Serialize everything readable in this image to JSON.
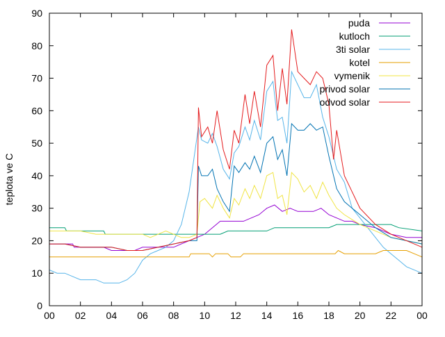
{
  "chart_data": {
    "type": "line",
    "ylabel": "teplota ve C",
    "xlabel": "",
    "title": "",
    "xlim": [
      0,
      24
    ],
    "ylim": [
      0,
      90
    ],
    "xticks": [
      "00",
      "02",
      "04",
      "06",
      "08",
      "10",
      "12",
      "14",
      "16",
      "18",
      "20",
      "22",
      "00"
    ],
    "yticks": [
      "0",
      "10",
      "20",
      "30",
      "40",
      "50",
      "60",
      "70",
      "80",
      "90"
    ],
    "grid": false,
    "legend_position": "top-right",
    "series": [
      {
        "name": "puda",
        "color": "#9400d3",
        "points": [
          [
            0,
            19
          ],
          [
            1.5,
            19
          ],
          [
            1.6,
            18
          ],
          [
            3.5,
            18
          ],
          [
            4,
            17
          ],
          [
            5.5,
            17
          ],
          [
            6,
            18
          ],
          [
            8,
            18
          ],
          [
            8.5,
            19
          ],
          [
            9,
            20
          ],
          [
            9.5,
            21
          ],
          [
            10,
            22
          ],
          [
            10.5,
            24
          ],
          [
            11,
            26
          ],
          [
            11.5,
            26
          ],
          [
            12,
            26
          ],
          [
            12.5,
            26
          ],
          [
            13,
            27
          ],
          [
            13.5,
            28
          ],
          [
            14,
            30
          ],
          [
            14.5,
            31
          ],
          [
            15,
            29
          ],
          [
            15.5,
            30
          ],
          [
            16,
            29
          ],
          [
            16.5,
            29
          ],
          [
            17,
            29
          ],
          [
            17.5,
            30
          ],
          [
            18,
            28
          ],
          [
            18.5,
            27
          ],
          [
            19,
            26
          ],
          [
            19.5,
            26
          ],
          [
            20,
            25
          ],
          [
            21,
            24
          ],
          [
            22,
            22
          ],
          [
            23,
            21
          ],
          [
            24,
            21
          ]
        ]
      },
      {
        "name": "kutloch",
        "color": "#009e73",
        "points": [
          [
            0,
            24
          ],
          [
            1,
            24
          ],
          [
            1.1,
            23
          ],
          [
            3.5,
            23
          ],
          [
            3.6,
            22
          ],
          [
            6,
            22
          ],
          [
            8,
            22
          ],
          [
            9,
            22
          ],
          [
            11,
            22
          ],
          [
            11.5,
            23
          ],
          [
            14,
            23
          ],
          [
            14.5,
            24
          ],
          [
            18,
            24
          ],
          [
            18.5,
            25
          ],
          [
            22,
            25
          ],
          [
            22.5,
            24
          ],
          [
            24,
            23
          ]
        ]
      },
      {
        "name": "3ti solar",
        "color": "#56b4e9",
        "points": [
          [
            0,
            11
          ],
          [
            0.5,
            10
          ],
          [
            1,
            10
          ],
          [
            1.5,
            9
          ],
          [
            2,
            8
          ],
          [
            3,
            8
          ],
          [
            3.5,
            7
          ],
          [
            4.5,
            7
          ],
          [
            5,
            8
          ],
          [
            5.5,
            10
          ],
          [
            6,
            14
          ],
          [
            6.5,
            16
          ],
          [
            7,
            17
          ],
          [
            7.5,
            18
          ],
          [
            8,
            20
          ],
          [
            8.5,
            25
          ],
          [
            9,
            35
          ],
          [
            9.3,
            45
          ],
          [
            9.6,
            55
          ],
          [
            9.8,
            51
          ],
          [
            10.2,
            50
          ],
          [
            10.5,
            53
          ],
          [
            10.8,
            49
          ],
          [
            11.2,
            42
          ],
          [
            11.6,
            39
          ],
          [
            11.9,
            47
          ],
          [
            12.2,
            49
          ],
          [
            12.6,
            55
          ],
          [
            12.9,
            51
          ],
          [
            13.2,
            57
          ],
          [
            13.6,
            51
          ],
          [
            14,
            66
          ],
          [
            14.4,
            69
          ],
          [
            14.7,
            57
          ],
          [
            15,
            58
          ],
          [
            15.3,
            50
          ],
          [
            15.6,
            72
          ],
          [
            16,
            68
          ],
          [
            16.4,
            64
          ],
          [
            16.8,
            64
          ],
          [
            17.2,
            68
          ],
          [
            17.6,
            58
          ],
          [
            18,
            52
          ],
          [
            18.5,
            42
          ],
          [
            19,
            38
          ],
          [
            19.5,
            30
          ],
          [
            20,
            27
          ],
          [
            20.5,
            24
          ],
          [
            21,
            21
          ],
          [
            21.5,
            18
          ],
          [
            22,
            16
          ],
          [
            22.5,
            14
          ],
          [
            23,
            12
          ],
          [
            24,
            10
          ]
        ]
      },
      {
        "name": "kotel",
        "color": "#e69f00",
        "points": [
          [
            0,
            15
          ],
          [
            9,
            15
          ],
          [
            9.1,
            16
          ],
          [
            10.3,
            16
          ],
          [
            10.5,
            15
          ],
          [
            10.7,
            16
          ],
          [
            11.5,
            16
          ],
          [
            11.7,
            15
          ],
          [
            12.3,
            15
          ],
          [
            12.5,
            16
          ],
          [
            18.4,
            16
          ],
          [
            18.6,
            17
          ],
          [
            19,
            16
          ],
          [
            21,
            16
          ],
          [
            21.5,
            17
          ],
          [
            23,
            17
          ],
          [
            23.5,
            16
          ],
          [
            24,
            15
          ]
        ]
      },
      {
        "name": "vymenik",
        "color": "#f0e442",
        "points": [
          [
            0,
            23
          ],
          [
            1,
            23
          ],
          [
            2,
            23
          ],
          [
            3,
            22
          ],
          [
            6,
            22
          ],
          [
            6.5,
            21
          ],
          [
            7,
            22
          ],
          [
            7.5,
            23
          ],
          [
            8,
            22
          ],
          [
            8.5,
            21
          ],
          [
            9,
            21
          ],
          [
            9.5,
            22
          ],
          [
            9.7,
            32
          ],
          [
            10,
            33
          ],
          [
            10.5,
            30
          ],
          [
            10.8,
            34
          ],
          [
            11.2,
            30
          ],
          [
            11.6,
            27
          ],
          [
            11.9,
            33
          ],
          [
            12.2,
            31
          ],
          [
            12.6,
            36
          ],
          [
            12.9,
            33
          ],
          [
            13.2,
            37
          ],
          [
            13.6,
            33
          ],
          [
            14,
            40
          ],
          [
            14.4,
            41
          ],
          [
            14.7,
            33
          ],
          [
            15,
            34
          ],
          [
            15.3,
            28
          ],
          [
            15.6,
            41
          ],
          [
            16,
            39
          ],
          [
            16.4,
            35
          ],
          [
            16.8,
            37
          ],
          [
            17.2,
            33
          ],
          [
            17.6,
            38
          ],
          [
            18,
            34
          ],
          [
            18.5,
            30
          ],
          [
            19,
            28
          ],
          [
            20,
            25
          ],
          [
            21,
            23
          ],
          [
            22,
            21
          ],
          [
            23,
            20
          ],
          [
            24,
            19
          ]
        ]
      },
      {
        "name": "privod solar",
        "color": "#0072b2",
        "points": [
          [
            0,
            19
          ],
          [
            1,
            19
          ],
          [
            2,
            18
          ],
          [
            4,
            18
          ],
          [
            5,
            17
          ],
          [
            6,
            17
          ],
          [
            7,
            18
          ],
          [
            8,
            19
          ],
          [
            9,
            20
          ],
          [
            9.5,
            20
          ],
          [
            9.6,
            43
          ],
          [
            9.8,
            40
          ],
          [
            10.2,
            40
          ],
          [
            10.5,
            42
          ],
          [
            10.8,
            36
          ],
          [
            11.2,
            32
          ],
          [
            11.6,
            29
          ],
          [
            11.9,
            43
          ],
          [
            12.2,
            41
          ],
          [
            12.6,
            44
          ],
          [
            12.9,
            42
          ],
          [
            13.2,
            46
          ],
          [
            13.6,
            41
          ],
          [
            14,
            50
          ],
          [
            14.4,
            52
          ],
          [
            14.7,
            45
          ],
          [
            15,
            48
          ],
          [
            15.3,
            40
          ],
          [
            15.6,
            56
          ],
          [
            16,
            54
          ],
          [
            16.4,
            54
          ],
          [
            16.8,
            56
          ],
          [
            17.2,
            54
          ],
          [
            17.6,
            55
          ],
          [
            18,
            46
          ],
          [
            18.5,
            36
          ],
          [
            19,
            32
          ],
          [
            19.5,
            30
          ],
          [
            20,
            28
          ],
          [
            21,
            24
          ],
          [
            22,
            21
          ],
          [
            23,
            20
          ],
          [
            24,
            19
          ]
        ]
      },
      {
        "name": "odvod solar",
        "color": "#e41a1c",
        "points": [
          [
            0,
            19
          ],
          [
            1,
            19
          ],
          [
            2,
            18
          ],
          [
            4,
            18
          ],
          [
            5,
            17
          ],
          [
            6,
            17
          ],
          [
            7,
            18
          ],
          [
            8,
            19
          ],
          [
            9,
            20
          ],
          [
            9.5,
            21
          ],
          [
            9.6,
            61
          ],
          [
            9.8,
            52
          ],
          [
            10.2,
            55
          ],
          [
            10.5,
            50
          ],
          [
            10.8,
            60
          ],
          [
            11.2,
            48
          ],
          [
            11.6,
            42
          ],
          [
            11.9,
            54
          ],
          [
            12.2,
            50
          ],
          [
            12.6,
            65
          ],
          [
            12.9,
            56
          ],
          [
            13.2,
            66
          ],
          [
            13.6,
            55
          ],
          [
            14,
            74
          ],
          [
            14.4,
            77
          ],
          [
            14.7,
            60
          ],
          [
            15,
            73
          ],
          [
            15.3,
            62
          ],
          [
            15.6,
            85
          ],
          [
            16,
            72
          ],
          [
            16.4,
            70
          ],
          [
            16.8,
            68
          ],
          [
            17.2,
            72
          ],
          [
            17.6,
            70
          ],
          [
            18,
            62
          ],
          [
            18.3,
            45
          ],
          [
            18.5,
            54
          ],
          [
            19,
            40
          ],
          [
            19.5,
            35
          ],
          [
            20,
            30
          ],
          [
            21,
            25
          ],
          [
            22,
            22
          ],
          [
            23,
            20
          ],
          [
            24,
            18
          ]
        ]
      }
    ]
  }
}
